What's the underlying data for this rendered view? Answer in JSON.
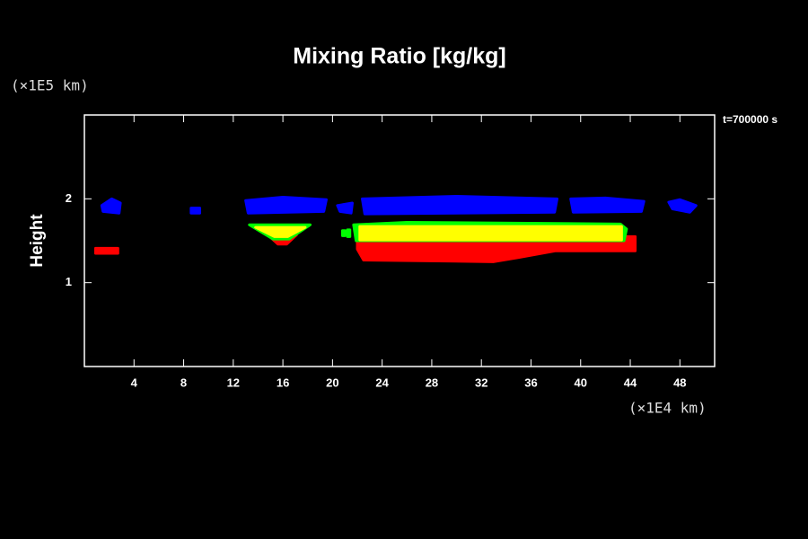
{
  "chart_data": {
    "type": "shaded",
    "title": "Mixing Ratio [kg/kg]",
    "x_unit": "(×1E4 km)",
    "y_unit": "(×1E5 km)",
    "y_label": "Height",
    "annotation": "t=700000 s",
    "xlim": [
      0,
      50.8
    ],
    "xticks": [
      4,
      8,
      12,
      16,
      20,
      24,
      28,
      32,
      36,
      40,
      44,
      48
    ],
    "ylim": [
      0,
      3
    ],
    "yticks": [
      1,
      2
    ],
    "regions": [
      {
        "color": "#ff0000",
        "x": [
          0.9,
          2.7,
          2.7,
          0.9
        ],
        "y": [
          1.35,
          1.35,
          1.41,
          1.41
        ]
      },
      {
        "color": "#ff0000",
        "x": [
          14.8,
          17.1,
          16.3,
          15.6
        ],
        "y": [
          1.57,
          1.57,
          1.46,
          1.46
        ]
      },
      {
        "color": "#ff0000",
        "x": [
          22.0,
          44.4,
          44.4,
          38.0,
          35.0,
          33.0,
          22.5,
          22.0
        ],
        "y": [
          1.55,
          1.55,
          1.38,
          1.38,
          1.3,
          1.25,
          1.27,
          1.4
        ]
      },
      {
        "color": "#00ff00",
        "x": [
          13.3,
          18.2,
          16.5,
          15.2
        ],
        "y": [
          1.69,
          1.69,
          1.52,
          1.52
        ]
      },
      {
        "color": "#00ff00",
        "x": [
          20.8,
          21.0,
          21.0,
          20.8
        ],
        "y": [
          1.56,
          1.56,
          1.62,
          1.62
        ]
      },
      {
        "color": "#00ff00",
        "x": [
          21.2,
          21.4,
          21.4,
          21.2
        ],
        "y": [
          1.55,
          1.55,
          1.63,
          1.63
        ]
      },
      {
        "color": "#00ff00",
        "x": [
          21.7,
          26.0,
          43.2,
          43.7,
          43.5,
          21.9
        ],
        "y": [
          1.69,
          1.72,
          1.7,
          1.64,
          1.5,
          1.5
        ]
      },
      {
        "color": "#ffff00",
        "x": [
          13.8,
          17.8,
          16.4,
          15.3
        ],
        "y": [
          1.66,
          1.66,
          1.55,
          1.55
        ]
      },
      {
        "color": "#ffff00",
        "x": [
          22.2,
          43.3,
          43.3,
          22.2
        ],
        "y": [
          1.67,
          1.67,
          1.51,
          1.51
        ]
      },
      {
        "color": "#0000ff",
        "x": [
          1.4,
          2.2,
          2.9,
          2.8,
          1.5
        ],
        "y": [
          1.92,
          2.0,
          1.95,
          1.83,
          1.85
        ]
      },
      {
        "color": "#0000ff",
        "x": [
          8.6,
          9.3,
          9.3,
          8.6
        ],
        "y": [
          1.89,
          1.89,
          1.83,
          1.83
        ]
      },
      {
        "color": "#0000ff",
        "x": [
          13.0,
          16.0,
          19.5,
          19.3,
          13.2
        ],
        "y": [
          1.98,
          2.02,
          1.99,
          1.85,
          1.83
        ]
      },
      {
        "color": "#0000ff",
        "x": [
          20.4,
          21.6,
          21.5,
          20.6
        ],
        "y": [
          1.92,
          1.95,
          1.83,
          1.85
        ]
      },
      {
        "color": "#0000ff",
        "x": [
          22.4,
          30.0,
          38.1,
          37.9,
          22.6
        ],
        "y": [
          2.0,
          2.03,
          2.0,
          1.84,
          1.82
        ]
      },
      {
        "color": "#0000ff",
        "x": [
          39.2,
          42.0,
          45.1,
          44.9,
          39.4
        ],
        "y": [
          2.0,
          2.01,
          1.97,
          1.85,
          1.84
        ]
      },
      {
        "color": "#0000ff",
        "x": [
          47.1,
          48.0,
          49.3,
          48.8,
          47.4
        ],
        "y": [
          1.96,
          1.99,
          1.92,
          1.84,
          1.88
        ]
      }
    ]
  }
}
